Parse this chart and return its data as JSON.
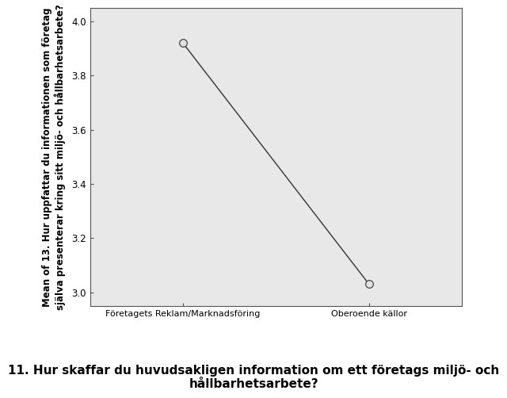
{
  "x_labels": [
    "Företagets Reklam/Marknadsföring",
    "Oberoende källor"
  ],
  "x_positions": [
    0,
    1
  ],
  "y_values": [
    3.92,
    3.03
  ],
  "ylim": [
    2.95,
    4.05
  ],
  "yticks": [
    3.0,
    3.2,
    3.4,
    3.6,
    3.8,
    4.0
  ],
  "line_color": "#333333",
  "marker_facecolor": "#e0e0e0",
  "marker_edgecolor": "#333333",
  "marker_size": 7,
  "marker_style": "o",
  "ylabel": "Mean of 13. Hur uppfattar du informationen som företag\nsjälva presenterar kring sitt miljö- och hållbarhetsarbete?",
  "xlabel_line1": "11. Hur skaffar du huvudsakligen information om ett företags miljö- och",
  "xlabel_line2": "hållbarhetsarbete?",
  "figure_background_color": "#ffffff",
  "plot_background_color": "#e8e8e8",
  "spine_color": "#555555",
  "ylabel_fontsize": 8.5,
  "xlabel_fontsize": 11,
  "xlabel_fontweight": "bold",
  "tick_fontsize": 8.5,
  "xtick_fontsize": 8.0
}
